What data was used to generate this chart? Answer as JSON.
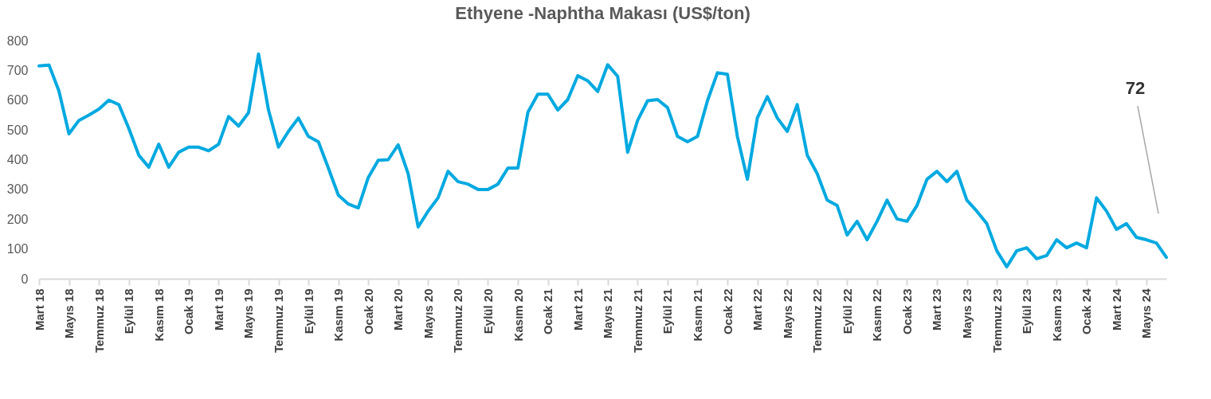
{
  "chart_data": {
    "type": "line",
    "title": "Ethyene -Naphtha Makası (US$/ton)",
    "categories": [
      "Mart 18",
      null,
      null,
      "Mayıs 18",
      null,
      null,
      "Temmuz 18",
      null,
      null,
      "Eylül 18",
      null,
      null,
      "Kasım 18",
      null,
      null,
      "Ocak 19",
      null,
      null,
      "Mart 19",
      null,
      null,
      "Mayıs 19",
      null,
      null,
      "Temmuz 19",
      null,
      null,
      "Eylül 19",
      null,
      null,
      "Kasım 19",
      null,
      null,
      "Ocak 20",
      null,
      null,
      "Mart 20",
      null,
      null,
      "Mayıs 20",
      null,
      null,
      "Temmuz 20",
      null,
      null,
      "Eylül 20",
      null,
      null,
      "Kasım 20",
      null,
      null,
      "Ocak 21",
      null,
      null,
      "Mart 21",
      null,
      null,
      "Mayıs 21",
      null,
      null,
      "Temmuz 21",
      null,
      null,
      "Eylül 21",
      null,
      null,
      "Kasım 21",
      null,
      null,
      "Ocak 22",
      null,
      null,
      "Mart 22",
      null,
      null,
      "Mayıs 22",
      null,
      null,
      "Temmuz 22",
      null,
      null,
      "Eylül 22",
      null,
      null,
      "Kasım 22",
      null,
      null,
      "Ocak 23",
      null,
      null,
      "Mart 23",
      null,
      null,
      "Mayıs 23",
      null,
      null,
      "Temmuz 23",
      null,
      null,
      "Eylül 23",
      null,
      null,
      "Kasım 23",
      null,
      null,
      "Ocak 24",
      null,
      null,
      "Mart 24",
      null,
      null,
      "Mayıs 24",
      null,
      null
    ],
    "values": [
      715,
      718,
      630,
      487,
      532,
      550,
      570,
      600,
      585,
      505,
      415,
      375,
      452,
      375,
      425,
      442,
      442,
      430,
      452,
      545,
      513,
      558,
      755,
      567,
      442,
      495,
      540,
      478,
      460,
      372,
      281,
      251,
      238,
      340,
      398,
      400,
      450,
      353,
      174,
      227,
      272,
      361,
      326,
      318,
      300,
      300,
      318,
      372,
      372,
      559,
      620,
      620,
      567,
      602,
      682,
      665,
      629,
      719,
      680,
      425,
      532,
      598,
      602,
      575,
      478,
      460,
      478,
      598,
      692,
      687,
      478,
      334,
      540,
      612,
      540,
      495,
      585,
      415,
      353,
      264,
      246,
      147,
      193,
      131,
      193,
      264,
      201,
      193,
      246,
      334,
      361,
      326,
      361,
      264,
      227,
      185,
      94,
      40,
      94,
      104,
      67,
      78,
      131,
      104,
      120,
      104,
      272,
      227,
      166,
      185,
      139,
      131,
      120,
      72
    ],
    "color": "#00a9e0",
    "ylim": [
      0,
      800
    ],
    "yticks": [
      0,
      100,
      200,
      300,
      400,
      500,
      600,
      700,
      800
    ],
    "grid": false,
    "annotations": [
      "72"
    ]
  }
}
